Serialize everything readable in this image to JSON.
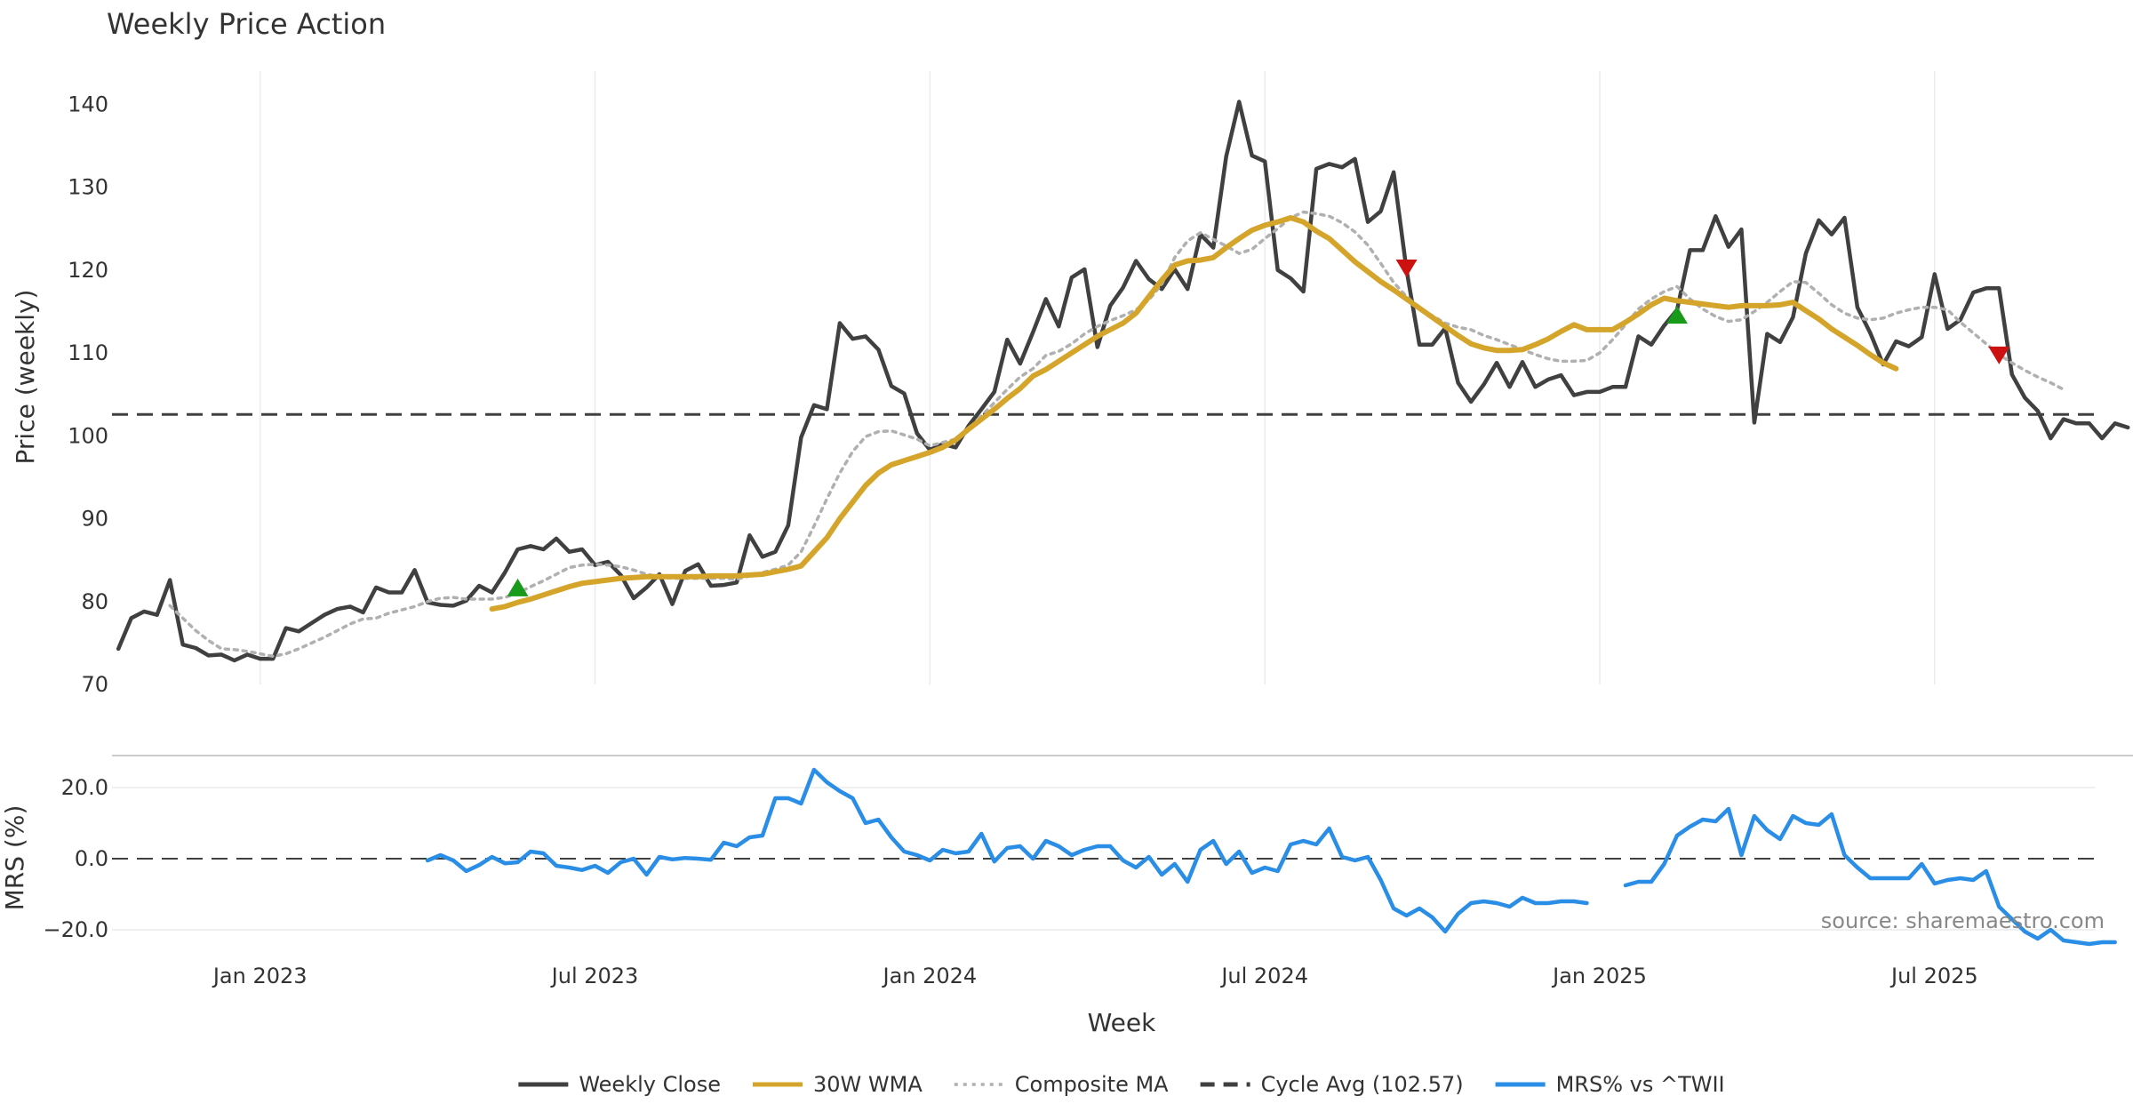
{
  "chart_data": {
    "type": "line",
    "title": "Weekly Price Action",
    "xlabel": "Week",
    "x_ticks": [
      {
        "label": "Jan 2023",
        "week": 11
      },
      {
        "label": "Jul 2023",
        "week": 37
      },
      {
        "label": "Jan 2024",
        "week": 63
      },
      {
        "label": "Jul 2024",
        "week": 89
      },
      {
        "label": "Jan 2025",
        "week": 115
      },
      {
        "label": "Jul 2025",
        "week": 141
      }
    ],
    "x_range": [
      -0.5,
      153.5
    ],
    "price_panel": {
      "ylabel": "Price (weekly)",
      "ylim": [
        70,
        144
      ],
      "y_ticks": [
        70,
        80,
        90,
        100,
        110,
        120,
        130,
        140
      ],
      "grid": true,
      "series": [
        {
          "name": "Weekly Close",
          "color": "#404040",
          "style": "solid",
          "values": [
            74.3,
            78.0,
            78.8,
            78.4,
            82.6,
            74.8,
            74.4,
            73.5,
            73.6,
            72.9,
            73.6,
            73.1,
            73.1,
            76.8,
            76.4,
            77.4,
            78.4,
            79.1,
            79.4,
            78.7,
            81.7,
            81.1,
            81.1,
            83.8,
            79.9,
            79.6,
            79.5,
            80.1,
            81.9,
            81.1,
            83.5,
            86.3,
            86.7,
            86.3,
            87.6,
            86.0,
            86.3,
            84.4,
            84.8,
            83.2,
            80.4,
            81.7,
            83.3,
            79.7,
            83.7,
            84.5,
            81.9,
            82.0,
            82.3,
            88.0,
            85.4,
            86.0,
            89.2,
            99.8,
            103.7,
            103.2,
            113.6,
            111.7,
            112.0,
            110.4,
            106.0,
            105.1,
            100.3,
            98.3,
            99.0,
            98.6,
            101.2,
            103.2,
            105.3,
            111.6,
            108.7,
            112.5,
            116.5,
            113.2,
            119.1,
            120.1,
            110.7,
            115.7,
            117.9,
            121.1,
            118.9,
            117.7,
            120.1,
            117.7,
            124.3,
            122.7,
            133.7,
            140.3,
            133.8,
            133.1,
            120.0,
            119.0,
            117.4,
            132.2,
            132.8,
            132.4,
            133.4,
            125.8,
            127.1,
            131.8,
            120.0,
            111.0,
            111.0,
            113.0,
            106.4,
            104.1,
            106.2,
            108.8,
            105.9,
            108.9,
            105.9,
            106.8,
            107.3,
            104.9,
            105.3,
            105.3,
            105.9,
            105.9,
            112.0,
            111.0,
            113.3,
            115.2,
            122.4,
            122.4,
            126.5,
            122.8,
            124.9,
            101.6,
            112.3,
            111.3,
            114.3,
            122.0,
            126.0,
            124.3,
            126.3,
            115.5,
            112.4,
            108.6,
            111.4,
            110.8,
            111.9,
            119.5,
            112.9,
            114.0,
            117.3,
            117.8,
            117.8,
            107.4,
            104.6,
            103.0,
            99.7,
            102.0,
            101.5,
            101.5,
            99.7,
            101.5,
            101.0
          ]
        },
        {
          "name": "30W WMA",
          "color": "#d4a52a",
          "style": "solid",
          "start_week": 29,
          "values": [
            79.1,
            79.4,
            79.9,
            80.3,
            80.8,
            81.3,
            81.8,
            82.2,
            82.4,
            82.6,
            82.8,
            82.9,
            83.0,
            83.0,
            83.0,
            83.0,
            83.0,
            83.1,
            83.1,
            83.1,
            83.2,
            83.3,
            83.6,
            83.9,
            84.3,
            86.0,
            87.7,
            90.0,
            92.0,
            94.0,
            95.5,
            96.5,
            97.0,
            97.5,
            98.0,
            98.6,
            99.5,
            100.8,
            102.0,
            103.2,
            104.5,
            105.7,
            107.2,
            108.0,
            109.0,
            110.0,
            111.0,
            112.0,
            112.8,
            113.6,
            114.8,
            116.8,
            118.8,
            120.6,
            121.1,
            121.2,
            121.5,
            122.7,
            123.8,
            124.8,
            125.4,
            125.8,
            126.3,
            125.8,
            124.7,
            123.8,
            122.4,
            121.0,
            119.8,
            118.6,
            117.6,
            116.5,
            115.4,
            114.3,
            113.2,
            112.1,
            111.1,
            110.6,
            110.3,
            110.3,
            110.4,
            111.0,
            111.7,
            112.6,
            113.4,
            112.8,
            112.8,
            112.8,
            113.7,
            114.7,
            115.8,
            116.6,
            116.3,
            116.1,
            115.9,
            115.7,
            115.5,
            115.7,
            115.7,
            115.7,
            115.8,
            116.1,
            115.1,
            114.1,
            112.9,
            111.9,
            110.9,
            109.8,
            108.8,
            108.1
          ]
        },
        {
          "name": "Composite MA",
          "color": "#b0b0b0",
          "style": "dotted",
          "start_week": 4,
          "values": [
            79.5,
            78.0,
            76.5,
            75.3,
            74.3,
            74.2,
            74.0,
            73.7,
            73.4,
            73.7,
            74.3,
            75.0,
            75.7,
            76.5,
            77.3,
            77.9,
            78.0,
            78.6,
            79.0,
            79.4,
            80.0,
            80.4,
            80.5,
            80.3,
            80.3,
            80.3,
            80.5,
            81.0,
            81.8,
            82.5,
            83.3,
            84.1,
            84.4,
            84.5,
            84.4,
            84.2,
            83.8,
            83.3,
            83.0,
            82.8,
            82.8,
            82.8,
            82.8,
            82.8,
            82.7,
            83.1,
            83.5,
            83.9,
            84.4,
            86.0,
            89.1,
            92.4,
            95.5,
            98.1,
            99.9,
            100.5,
            100.6,
            100.1,
            99.6,
            98.8,
            99.2,
            99.6,
            100.7,
            102.4,
            104.0,
            105.6,
            107.1,
            108.1,
            109.7,
            110.2,
            111.1,
            112.3,
            113.2,
            113.9,
            114.5,
            115.2,
            116.4,
            118.3,
            121.5,
            123.5,
            124.5,
            123.7,
            122.9,
            122.0,
            122.5,
            123.8,
            125.0,
            126.3,
            127.0,
            126.8,
            126.5,
            125.7,
            124.6,
            123.0,
            120.8,
            118.5,
            116.8,
            115.4,
            114.5,
            113.6,
            113.1,
            112.8,
            112.1,
            111.6,
            111.0,
            110.4,
            109.8,
            109.3,
            109.0,
            109.0,
            109.1,
            110.0,
            111.6,
            113.4,
            115.3,
            116.5,
            117.4,
            118.0,
            116.5,
            115.3,
            114.4,
            113.8,
            114.0,
            115.0,
            116.1,
            117.4,
            118.6,
            118.5,
            117.2,
            115.8,
            114.8,
            114.2,
            114.0,
            114.2,
            114.8,
            115.2,
            115.5,
            115.5,
            115.2,
            113.7,
            112.4,
            111.1,
            109.8,
            108.8,
            107.9,
            107.1,
            106.4,
            105.6
          ]
        },
        {
          "name": "Cycle Avg (102.57)",
          "color": "#404040",
          "style": "dashed",
          "value": 102.57
        }
      ],
      "markers": [
        {
          "type": "buy",
          "week": 31,
          "value": 81.6,
          "color": "#1a9a1a"
        },
        {
          "type": "sell",
          "week": 100,
          "value": 120.3,
          "color": "#cc1111"
        },
        {
          "type": "buy",
          "week": 121,
          "value": 114.5,
          "color": "#1a9a1a"
        },
        {
          "type": "sell",
          "week": 146,
          "value": 109.8,
          "color": "#cc1111"
        }
      ]
    },
    "mrs_panel": {
      "ylabel": "MRS (%)",
      "ylim": [
        -26,
        26
      ],
      "y_ticks": [
        {
          "value": 20,
          "label": "20.0"
        },
        {
          "value": 0,
          "label": "0.0"
        },
        {
          "value": -20,
          "label": "−20.0"
        }
      ],
      "zero_line": {
        "value": 0,
        "style": "dashed"
      },
      "series": [
        {
          "name": "MRS% vs ^TWII",
          "color": "#2a8de6",
          "style": "solid",
          "start_week": 24,
          "values": [
            -0.5,
            1.0,
            -0.5,
            -3.5,
            -1.8,
            0.5,
            -1.3,
            -1.0,
            2.0,
            1.5,
            -2.0,
            -2.5,
            -3.2,
            -2.0,
            -4.0,
            -1.0,
            0.0,
            -4.5,
            0.5,
            -0.2,
            0.2,
            0.0,
            -0.3,
            4.5,
            3.5,
            6.0,
            6.5,
            17.0,
            17.0,
            15.5,
            25.0,
            21.5,
            19.0,
            17.0,
            10.0,
            11.0,
            6.0,
            2.0,
            1.0,
            -0.5,
            2.5,
            1.5,
            2.0,
            7.0,
            -0.8,
            3.0,
            3.5,
            0.0,
            5.0,
            3.5,
            1.0,
            2.5,
            3.5,
            3.5,
            -0.5,
            -2.5,
            0.5,
            -4.5,
            -1.5,
            -6.5,
            2.5,
            5.0,
            -1.5,
            2.0,
            -4.0,
            -2.5,
            -3.5,
            4.0,
            5.0,
            4.0,
            8.5,
            0.5,
            -0.5,
            0.5,
            -6.0,
            -14.0,
            -16.0,
            -14.0,
            -16.5,
            -20.5,
            -15.5,
            -12.5,
            -12.0,
            -12.5,
            -13.5,
            -11.0,
            -12.5,
            -12.5,
            -12.0,
            -12.0,
            -12.5,
            null,
            null,
            -7.5,
            -6.5,
            -6.5,
            -1.5,
            6.5,
            9.0,
            11.0,
            10.5,
            14.0,
            1.0,
            12.0,
            8.0,
            5.5,
            12.0,
            10.0,
            9.5,
            12.5,
            1.0,
            -2.5,
            -5.5,
            -5.5,
            -5.5,
            -5.5,
            -1.5,
            -7.0,
            -6.0,
            -5.5,
            -6.0,
            -3.5,
            -13.5,
            -17.0,
            -20.5,
            -22.5,
            -20.0,
            -23.0,
            -23.5,
            -24.0,
            -23.5,
            -23.5
          ]
        }
      ]
    },
    "legend": {
      "position": "bottom-center",
      "entries": [
        {
          "label": "Weekly Close",
          "color": "#404040",
          "style": "solid"
        },
        {
          "label": "30W WMA",
          "color": "#d4a52a",
          "style": "solid"
        },
        {
          "label": "Composite MA",
          "color": "#b0b0b0",
          "style": "dotted"
        },
        {
          "label": "Cycle Avg (102.57)",
          "color": "#404040",
          "style": "dashed"
        },
        {
          "label": "MRS% vs ^TWII",
          "color": "#2a8de6",
          "style": "solid"
        }
      ]
    },
    "annotation": "source: sharemaestro.com"
  }
}
